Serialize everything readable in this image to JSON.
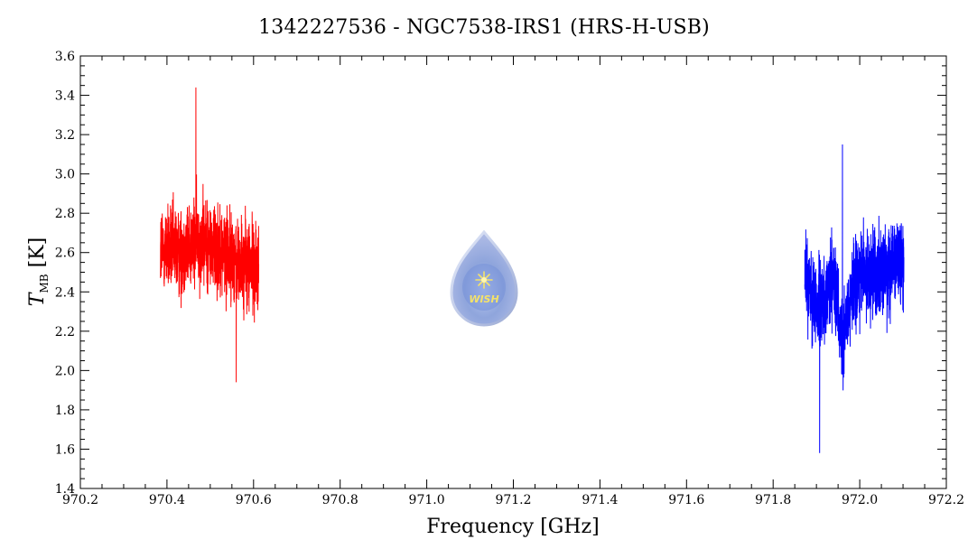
{
  "chart_data": {
    "type": "line",
    "title": "1342227536 - NGC7538-IRS1 (HRS-H-USB)",
    "xlabel": "Frequency [GHz]",
    "ylabel": {
      "symbol": "T",
      "subscript": "MB",
      "unit": " [K]"
    },
    "xlim": [
      970.2,
      972.2
    ],
    "ylim": [
      1.4,
      3.6
    ],
    "xticks": [
      970.2,
      970.4,
      970.6,
      970.8,
      971.0,
      971.2,
      971.4,
      971.6,
      971.8,
      972.0,
      972.2
    ],
    "xtick_labels": [
      "970.2",
      "970.4",
      "970.6",
      "970.8",
      "971.0",
      "971.2",
      "971.4",
      "971.6",
      "971.8",
      "972.0",
      "972.2"
    ],
    "yticks": [
      1.4,
      1.6,
      1.8,
      2.0,
      2.2,
      2.4,
      2.6,
      2.8,
      3.0,
      3.2,
      3.4,
      3.6
    ],
    "ytick_labels": [
      "1.4",
      "1.6",
      "1.8",
      "2.0",
      "2.2",
      "2.4",
      "2.6",
      "2.8",
      "3.0",
      "3.2",
      "3.4",
      "3.6"
    ],
    "grid": false,
    "series": [
      {
        "color": "#ff0000",
        "x_range": [
          970.385,
          970.612
        ],
        "baseline": [
          {
            "x": 970.385,
            "y": 2.62
          },
          {
            "x": 970.43,
            "y": 2.6
          },
          {
            "x": 970.47,
            "y": 2.66
          },
          {
            "x": 970.52,
            "y": 2.62
          },
          {
            "x": 970.56,
            "y": 2.55
          },
          {
            "x": 970.612,
            "y": 2.52
          }
        ],
        "extremes": {
          "max": 3.44,
          "min": 1.94
        }
      },
      {
        "color": "#0000ff",
        "x_range": [
          971.873,
          972.102
        ],
        "baseline": [
          {
            "x": 971.873,
            "y": 2.48
          },
          {
            "x": 971.91,
            "y": 2.3
          },
          {
            "x": 971.94,
            "y": 2.45
          },
          {
            "x": 971.96,
            "y": 2.15
          },
          {
            "x": 971.99,
            "y": 2.45
          },
          {
            "x": 972.04,
            "y": 2.5
          },
          {
            "x": 972.102,
            "y": 2.55
          }
        ],
        "extremes": {
          "max": 3.15,
          "min": 1.58
        }
      }
    ]
  },
  "logo": {
    "text": "WISH",
    "icon": "water-drop-star-logo"
  }
}
